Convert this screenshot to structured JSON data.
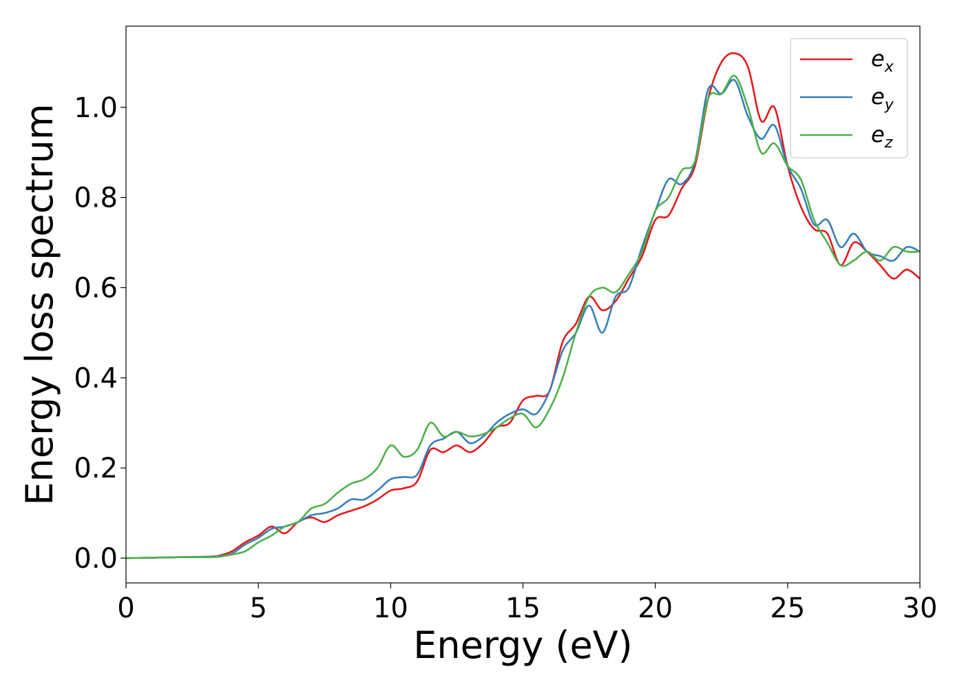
{
  "chart_data": {
    "type": "line",
    "title": "",
    "xlabel": "Energy (eV)",
    "ylabel": "Energy loss spectrum",
    "xlim": [
      0,
      30
    ],
    "ylim": [
      -0.055,
      1.18
    ],
    "xticks": [
      0,
      5,
      10,
      15,
      20,
      25,
      30
    ],
    "xtick_labels": [
      "0",
      "5",
      "10",
      "15",
      "20",
      "25",
      "30"
    ],
    "yticks": [
      0.0,
      0.2,
      0.4,
      0.6,
      0.8,
      1.0
    ],
    "ytick_labels": [
      "0.0",
      "0.2",
      "0.4",
      "0.6",
      "0.8",
      "1.0"
    ],
    "grid": false,
    "legend_position": "top-right",
    "x": [
      0,
      1,
      2,
      3,
      3.5,
      4,
      4.5,
      5,
      5.5,
      6,
      6.5,
      7,
      7.5,
      8,
      8.5,
      9,
      9.5,
      10,
      10.5,
      11,
      11.5,
      12,
      12.5,
      13,
      13.5,
      14,
      14.5,
      15,
      15.5,
      16,
      16.5,
      17,
      17.5,
      18,
      18.5,
      19,
      19.5,
      20,
      20.5,
      21,
      21.5,
      22,
      22.5,
      23,
      23.5,
      24,
      24.5,
      25,
      25.5,
      26,
      26.5,
      27,
      27.5,
      28,
      28.5,
      29,
      29.5,
      30
    ],
    "series": [
      {
        "name": "e",
        "subscript": "x",
        "color": "#e41a1c",
        "values": [
          0,
          0.001,
          0.002,
          0.003,
          0.005,
          0.015,
          0.035,
          0.05,
          0.07,
          0.055,
          0.08,
          0.09,
          0.08,
          0.095,
          0.105,
          0.115,
          0.13,
          0.15,
          0.155,
          0.17,
          0.24,
          0.235,
          0.25,
          0.235,
          0.255,
          0.29,
          0.3,
          0.35,
          0.36,
          0.37,
          0.48,
          0.52,
          0.58,
          0.55,
          0.57,
          0.62,
          0.67,
          0.75,
          0.76,
          0.82,
          0.87,
          1.02,
          1.1,
          1.12,
          1.09,
          0.97,
          1.0,
          0.87,
          0.78,
          0.73,
          0.72,
          0.65,
          0.7,
          0.68,
          0.65,
          0.62,
          0.64,
          0.62
        ]
      },
      {
        "name": "e",
        "subscript": "y",
        "color": "#377eb8",
        "values": [
          0,
          0.001,
          0.002,
          0.003,
          0.004,
          0.01,
          0.03,
          0.045,
          0.065,
          0.07,
          0.08,
          0.095,
          0.1,
          0.11,
          0.13,
          0.13,
          0.15,
          0.175,
          0.18,
          0.185,
          0.25,
          0.265,
          0.28,
          0.255,
          0.27,
          0.3,
          0.32,
          0.33,
          0.32,
          0.37,
          0.46,
          0.5,
          0.56,
          0.5,
          0.58,
          0.6,
          0.69,
          0.77,
          0.84,
          0.83,
          0.88,
          1.04,
          1.03,
          1.06,
          0.98,
          0.93,
          0.96,
          0.87,
          0.82,
          0.74,
          0.75,
          0.69,
          0.72,
          0.68,
          0.67,
          0.66,
          0.69,
          0.68
        ]
      },
      {
        "name": "e",
        "subscript": "z",
        "color": "#4daf4a",
        "values": [
          0,
          0.001,
          0.002,
          0.002,
          0.003,
          0.008,
          0.015,
          0.035,
          0.05,
          0.07,
          0.08,
          0.11,
          0.12,
          0.145,
          0.165,
          0.175,
          0.2,
          0.25,
          0.225,
          0.24,
          0.3,
          0.27,
          0.28,
          0.27,
          0.275,
          0.29,
          0.31,
          0.32,
          0.29,
          0.33,
          0.4,
          0.5,
          0.58,
          0.6,
          0.59,
          0.63,
          0.68,
          0.77,
          0.8,
          0.86,
          0.88,
          1.02,
          1.03,
          1.07,
          1.0,
          0.9,
          0.92,
          0.87,
          0.84,
          0.75,
          0.7,
          0.65,
          0.66,
          0.68,
          0.66,
          0.69,
          0.68,
          0.68
        ]
      }
    ]
  }
}
